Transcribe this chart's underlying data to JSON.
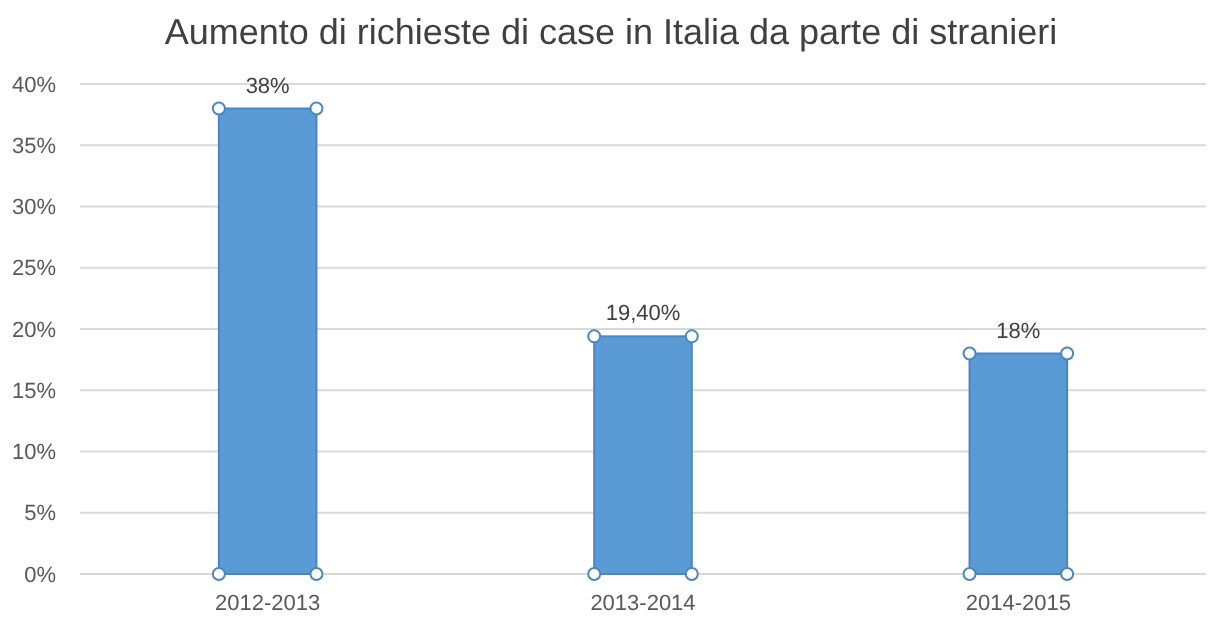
{
  "chart_data": {
    "type": "bar",
    "title": "Aumento di richieste di case in Italia da parte di stranieri",
    "categories": [
      "2012-2013",
      "2013-2014",
      "2014-2015"
    ],
    "values": [
      38,
      19.4,
      18
    ],
    "color": "#5b9bd5",
    "value_labels": [
      "38%",
      "19,40%",
      "18%"
    ],
    "ylim": [
      0,
      40
    ],
    "yticks": [
      {
        "value": 0,
        "label": "0%"
      },
      {
        "value": 5,
        "label": "5%"
      },
      {
        "value": 10,
        "label": "10%"
      },
      {
        "value": 15,
        "label": "15%"
      },
      {
        "value": 20,
        "label": "20%"
      },
      {
        "value": 25,
        "label": "25%"
      },
      {
        "value": 30,
        "label": "30%"
      },
      {
        "value": 35,
        "label": "35%"
      },
      {
        "value": 40,
        "label": "40%"
      }
    ],
    "grid": true
  }
}
